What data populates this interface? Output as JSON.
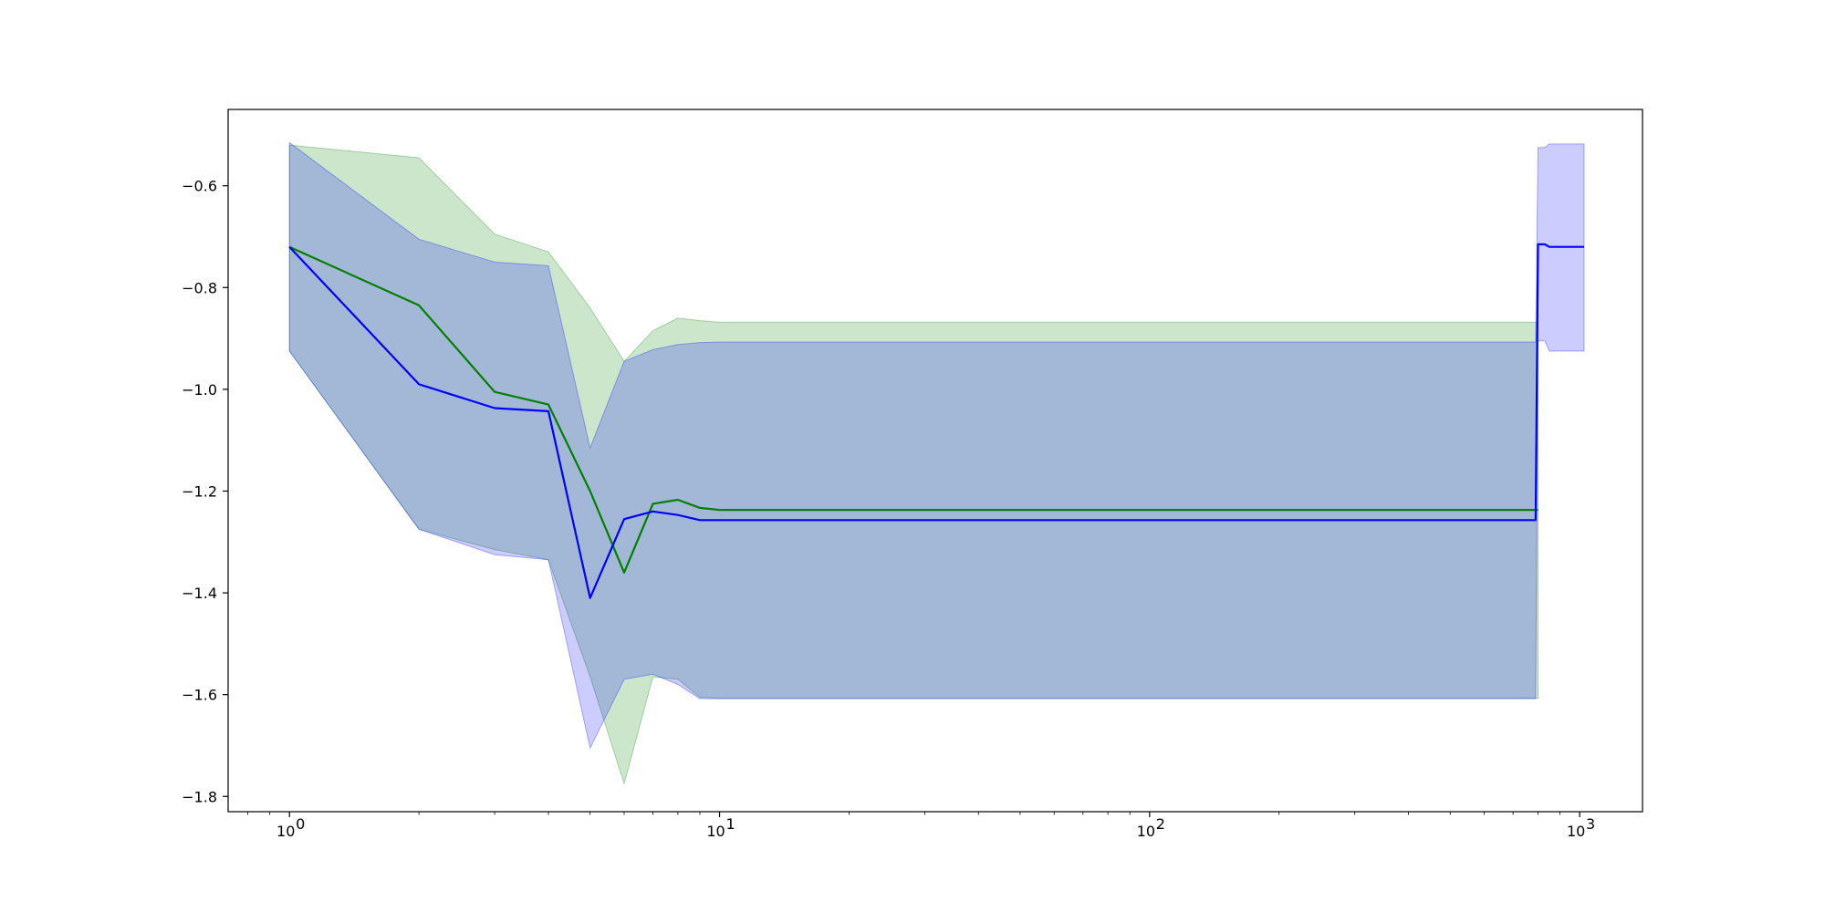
{
  "chart_data": {
    "type": "line",
    "title": "",
    "xlabel": "",
    "ylabel": "",
    "x_scale": "log",
    "xlim": [
      0.72,
      1400
    ],
    "ylim": [
      -1.83,
      -0.45
    ],
    "grid": false,
    "legend": "none",
    "x_ticks": [
      {
        "value": 1,
        "label": "10",
        "exp": "0"
      },
      {
        "value": 10,
        "label": "10",
        "exp": "1"
      },
      {
        "value": 100,
        "label": "10",
        "exp": "2"
      },
      {
        "value": 1000,
        "label": "10",
        "exp": "3"
      }
    ],
    "y_ticks": [
      {
        "value": -0.6,
        "label": "−0.6"
      },
      {
        "value": -0.8,
        "label": "−0.8"
      },
      {
        "value": -1.0,
        "label": "−1.0"
      },
      {
        "value": -1.2,
        "label": "−1.2"
      },
      {
        "value": -1.4,
        "label": "−1.4"
      },
      {
        "value": -1.6,
        "label": "−1.6"
      },
      {
        "value": -1.8,
        "label": "−1.8"
      }
    ],
    "series": [
      {
        "color": "#008000",
        "band_color": "#008000",
        "x": [
          1,
          2,
          3,
          4,
          5,
          6,
          7,
          8,
          9,
          10,
          800
        ],
        "mean": [
          -0.72,
          -0.835,
          -1.005,
          -1.03,
          -1.2,
          -1.36,
          -1.225,
          -1.217,
          -1.233,
          -1.237,
          -1.237
        ],
        "upper": [
          -0.52,
          -0.545,
          -0.695,
          -0.73,
          -0.84,
          -0.945,
          -0.885,
          -0.86,
          -0.865,
          -0.868,
          -0.868
        ],
        "lower": [
          -0.925,
          -1.275,
          -1.315,
          -1.335,
          -1.565,
          -1.775,
          -1.565,
          -1.57,
          -1.605,
          -1.607,
          -1.607
        ]
      },
      {
        "color": "#0000ff",
        "band_color": "#0000ff",
        "x": [
          1,
          2,
          3,
          4,
          5,
          6,
          7,
          8,
          9,
          10,
          790,
          800,
          830,
          850,
          1024
        ],
        "mean": [
          -0.72,
          -0.99,
          -1.037,
          -1.043,
          -1.41,
          -1.255,
          -1.24,
          -1.247,
          -1.257,
          -1.257,
          -1.257,
          -0.715,
          -0.715,
          -0.72,
          -0.72
        ],
        "upper": [
          -0.515,
          -0.705,
          -0.75,
          -0.757,
          -1.115,
          -0.945,
          -0.922,
          -0.912,
          -0.908,
          -0.907,
          -0.907,
          -0.525,
          -0.525,
          -0.518,
          -0.518
        ],
        "lower": [
          -0.925,
          -1.275,
          -1.325,
          -1.335,
          -1.705,
          -1.57,
          -1.56,
          -1.58,
          -1.608,
          -1.608,
          -1.608,
          -0.905,
          -0.905,
          -0.925,
          -0.925
        ]
      }
    ]
  }
}
